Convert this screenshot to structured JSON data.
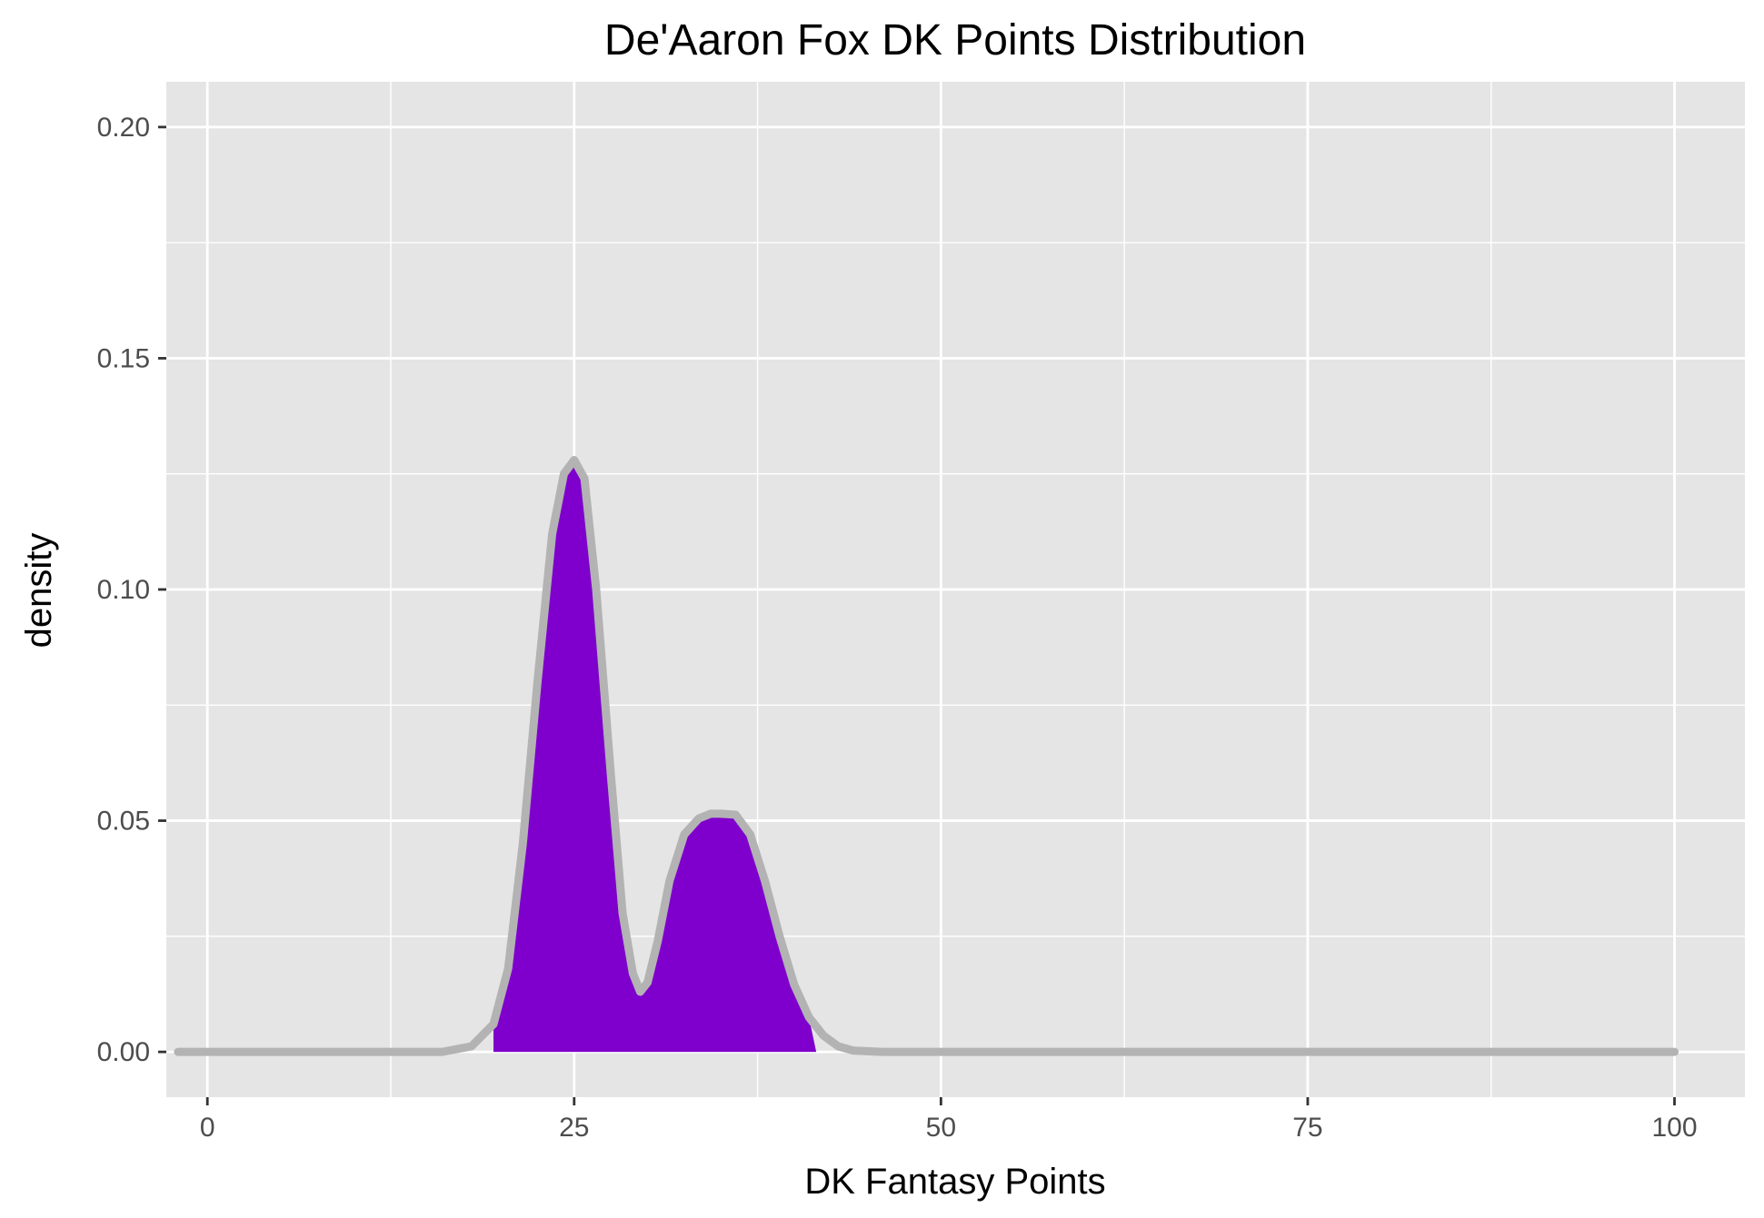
{
  "chart_data": {
    "type": "area",
    "title": "De'Aaron Fox DK Points Distribution",
    "xlabel": "DK Fantasy Points",
    "ylabel": "density",
    "xlim": [
      -2.8,
      104.8
    ],
    "ylim": [
      -0.0098,
      0.2098
    ],
    "x_ticks": [
      {
        "value": 0,
        "label": "0"
      },
      {
        "value": 25,
        "label": "25"
      },
      {
        "value": 50,
        "label": "50"
      },
      {
        "value": 75,
        "label": "75"
      },
      {
        "value": 100,
        "label": "100"
      }
    ],
    "y_ticks": [
      {
        "value": 0.0,
        "label": "0.00"
      },
      {
        "value": 0.05,
        "label": "0.05"
      },
      {
        "value": 0.1,
        "label": "0.10"
      },
      {
        "value": 0.15,
        "label": "0.15"
      },
      {
        "value": 0.2,
        "label": "0.20"
      }
    ],
    "x_minor": [
      12.5,
      37.5,
      62.5,
      87.5
    ],
    "y_minor": [
      0.025,
      0.075,
      0.125,
      0.175
    ],
    "grid": true,
    "legend": "none",
    "density_curve": {
      "x": [
        -2,
        16,
        18,
        19.5,
        20.5,
        21.5,
        22.5,
        23.5,
        24.3,
        25,
        25.7,
        26.5,
        27.5,
        28.3,
        29,
        29.5,
        30,
        30.7,
        31.5,
        32.5,
        33.5,
        34.3,
        35,
        36,
        37,
        38,
        39,
        40,
        41,
        42,
        43,
        44,
        46,
        100
      ],
      "y": [
        0,
        0,
        0.0012,
        0.006,
        0.018,
        0.045,
        0.08,
        0.112,
        0.125,
        0.128,
        0.124,
        0.1,
        0.06,
        0.03,
        0.017,
        0.013,
        0.015,
        0.024,
        0.037,
        0.047,
        0.0505,
        0.0515,
        0.0515,
        0.0513,
        0.047,
        0.037,
        0.025,
        0.0145,
        0.0075,
        0.0035,
        0.0012,
        0.0003,
        0,
        0
      ],
      "fill_range": [
        19.5,
        41.5
      ],
      "fill_color": "#7F00CC",
      "line_color": "#B3B3B3"
    },
    "panel_background": "#E5E5E5",
    "grid_color": "#FFFFFF"
  }
}
